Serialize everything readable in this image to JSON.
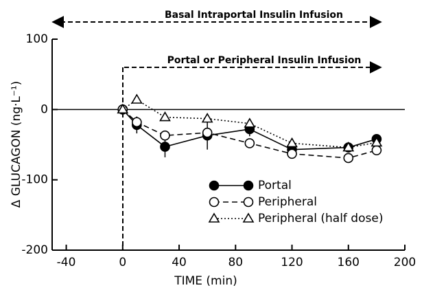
{
  "chart_data": {
    "type": "line",
    "x_label": "TIME (min)",
    "y_label": "Δ GLUCAGON (ng·L⁻¹)",
    "annotations": [
      "Basal Intraportal Insulin Infusion",
      "Portal or Peripheral Insulin Infusion"
    ],
    "x": [
      0,
      10,
      30,
      60,
      90,
      120,
      160,
      180
    ],
    "series": [
      {
        "name": "Portal",
        "color": "#000000",
        "marker": "circle-filled",
        "dash": "solid",
        "values": [
          0,
          -22,
          -53,
          -37,
          -28,
          -57,
          -54,
          -42
        ],
        "errors": [
          0,
          12,
          15,
          20,
          10,
          8,
          5,
          7
        ]
      },
      {
        "name": "Peripheral",
        "color": "#000000",
        "marker": "circle-open",
        "dash": "dashed",
        "values": [
          0,
          -18,
          -37,
          -33,
          -48,
          -63,
          -69,
          -58
        ],
        "errors": [
          0,
          6,
          6,
          6,
          5,
          6,
          6,
          6
        ]
      },
      {
        "name": "Peripheral (half dose)",
        "color": "#000000",
        "marker": "triangle-open",
        "dash": "dotted",
        "values": [
          0,
          14,
          -11,
          -13,
          -20,
          -48,
          -54,
          -47
        ],
        "errors": [
          0,
          5,
          5,
          5,
          5,
          5,
          5,
          5
        ]
      }
    ],
    "xlim": [
      -50,
      200
    ],
    "xticks": [
      -40,
      0,
      40,
      80,
      120,
      160,
      200
    ],
    "ylim": [
      -200,
      100
    ],
    "yticks": [
      -200,
      -100,
      0,
      100
    ]
  }
}
